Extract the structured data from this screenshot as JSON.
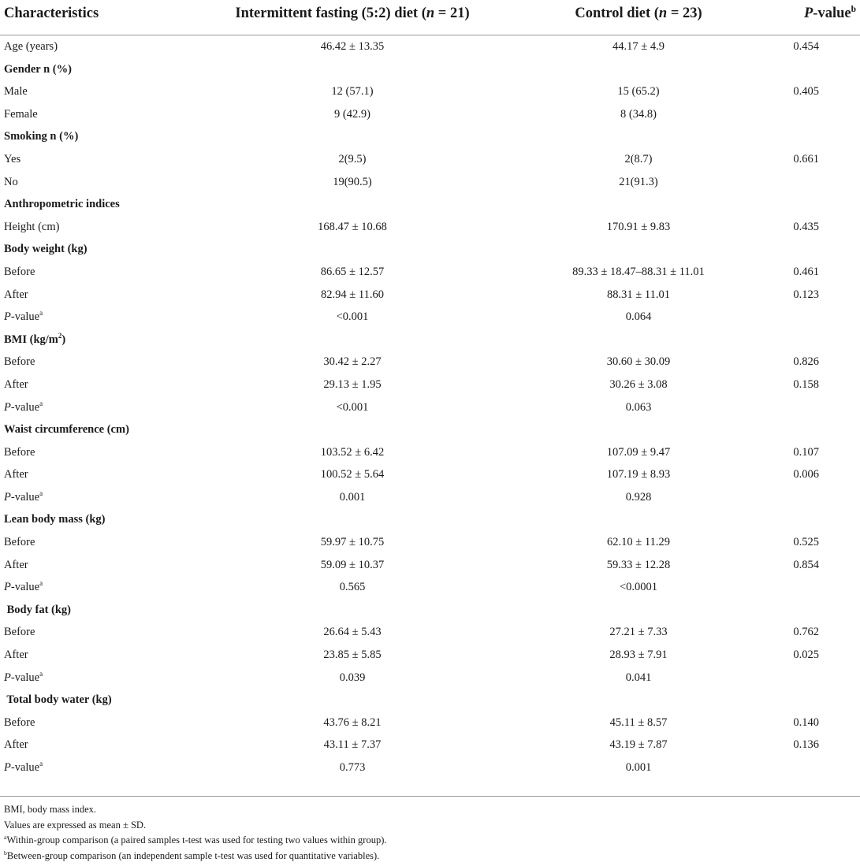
{
  "header": {
    "characteristics": "Characteristics",
    "col_if_pre": "Intermittent fasting (5:2) diet (",
    "col_if_n": "n",
    "col_if_post": " = 21)",
    "col_ctrl_pre": "Control diet (",
    "col_ctrl_n": "n",
    "col_ctrl_post": " = 23)",
    "pvalue_italic": "P",
    "pvalue_rest": "-value",
    "pvalue_sup": "b"
  },
  "rows": [
    {
      "label": "Age (years)",
      "if": "46.42 ± 13.35",
      "ctrl": "44.17 ± 4.9",
      "p": "0.454"
    },
    {
      "label": "Gender n (%)",
      "if": "",
      "ctrl": "",
      "p": ""
    },
    {
      "label": "Male",
      "if": "12 (57.1)",
      "ctrl": "15 (65.2)",
      "p": "0.405"
    },
    {
      "label": "Female",
      "if": "9 (42.9)",
      "ctrl": "8 (34.8)",
      "p": ""
    },
    {
      "label": "Smoking n (%)",
      "if": "",
      "ctrl": "",
      "p": ""
    },
    {
      "label": "Yes",
      "if": "2(9.5)",
      "ctrl": "2(8.7)",
      "p": "0.661"
    },
    {
      "label": "No",
      "if": "19(90.5)",
      "ctrl": "21(91.3)",
      "p": ""
    },
    {
      "label": "Anthropometric indices",
      "if": "",
      "ctrl": "",
      "p": ""
    },
    {
      "label": "Height (cm)",
      "if": "168.47 ± 10.68",
      "ctrl": "170.91 ± 9.83",
      "p": "0.435"
    },
    {
      "label": "Body weight (kg)",
      "if": "",
      "ctrl": "",
      "p": ""
    },
    {
      "label": "Before",
      "if": "86.65 ± 12.57",
      "ctrl": "89.33 ± 18.47–88.31 ± 11.01",
      "p": "0.461"
    },
    {
      "label": "After",
      "if": "82.94 ± 11.60",
      "ctrl": "88.31 ± 11.01",
      "p": "0.123"
    },
    {
      "label_italic": "P",
      "label_rest": "-value",
      "label_sup": "a",
      "if": "<0.001",
      "ctrl": "0.064",
      "p": ""
    },
    {
      "label": "BMI (kg/m",
      "label_sup": "2",
      "label_after": ")",
      "if": "",
      "ctrl": "",
      "p": ""
    },
    {
      "label": "Before",
      "if": "30.42 ± 2.27",
      "ctrl": "30.60 ± 30.09",
      "p": "0.826"
    },
    {
      "label": "After",
      "if": "29.13 ± 1.95",
      "ctrl": "30.26 ± 3.08",
      "p": "0.158"
    },
    {
      "label_italic": "P",
      "label_rest": "-value",
      "label_sup": "a",
      "if": "<0.001",
      "ctrl": "0.063",
      "p": ""
    },
    {
      "label": "Waist circumference (cm)",
      "if": "",
      "ctrl": "",
      "p": ""
    },
    {
      "label": "Before",
      "if": "103.52 ± 6.42",
      "ctrl": "107.09 ± 9.47",
      "p": "0.107"
    },
    {
      "label": "After",
      "if": "100.52 ± 5.64",
      "ctrl": "107.19 ± 8.93",
      "p": "0.006"
    },
    {
      "label_italic": "P",
      "label_rest": "-value",
      "label_sup": "a",
      "if": "0.001",
      "ctrl": "0.928",
      "p": ""
    },
    {
      "label": "Lean body mass (kg)",
      "if": "",
      "ctrl": "",
      "p": ""
    },
    {
      "label": "Before",
      "if": "59.97 ± 10.75",
      "ctrl": "62.10 ± 11.29",
      "p": "0.525"
    },
    {
      "label": "After",
      "if": "59.09 ± 10.37",
      "ctrl": "59.33 ± 12.28",
      "p": "0.854"
    },
    {
      "label_italic": "P",
      "label_rest": "-value",
      "label_sup": "a",
      "if": "0.565",
      "ctrl": "<0.0001",
      "p": ""
    },
    {
      "label": " Body fat (kg)",
      "if": "",
      "ctrl": "",
      "p": ""
    },
    {
      "label": "Before",
      "if": "26.64 ± 5.43",
      "ctrl": "27.21 ± 7.33",
      "p": "0.762"
    },
    {
      "label": "After",
      "if": "23.85 ± 5.85",
      "ctrl": "28.93 ± 7.91",
      "p": "0.025"
    },
    {
      "label_italic": "P",
      "label_rest": "-value",
      "label_sup": "a",
      "if": "0.039",
      "ctrl": "0.041",
      "p": ""
    },
    {
      "label": " Total body water (kg)",
      "if": "",
      "ctrl": "",
      "p": ""
    },
    {
      "label": "Before",
      "if": "43.76 ± 8.21",
      "ctrl": "45.11 ± 8.57",
      "p": "0.140"
    },
    {
      "label": "After",
      "if": "43.11 ± 7.37",
      "ctrl": "43.19 ± 7.87",
      "p": "0.136"
    },
    {
      "label_italic": "P",
      "label_rest": "-value",
      "label_sup": "a",
      "if": "0.773",
      "ctrl": "0.001",
      "p": ""
    }
  ],
  "section_rows": [
    1,
    4,
    7,
    9,
    13,
    17,
    21,
    25,
    29
  ],
  "footnotes": {
    "abbrev": "BMI, body mass index.",
    "values": "Values are expressed as mean ± SD.",
    "a_sup": "a",
    "a_text": "Within-group comparison (a paired samples t-test was used for testing two values within group).",
    "b_sup": "b",
    "b_text": "Between-group comparison (an independent sample t-test was used for quantitative variables)."
  }
}
